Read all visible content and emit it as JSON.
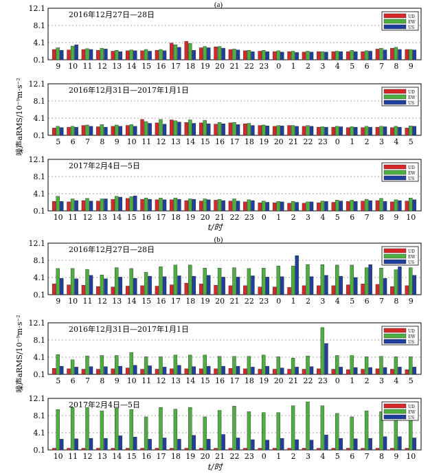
{
  "figure": {
    "panel_labels": [
      "(a)",
      "(b)"
    ],
    "ylabel": "噪声aRMS/10⁻⁹m·s⁻²",
    "xlabel": "t/时",
    "legend": [
      "UD",
      "EW",
      "US"
    ],
    "colors": {
      "UD": "#d62828",
      "EW": "#4caf3f",
      "US": "#1f3f9f"
    },
    "yticks": [
      "0.1",
      "4.1",
      "8.1",
      "12.1"
    ]
  },
  "chart_data": [
    {
      "type": "bar",
      "panel": "(a)",
      "title": "2016年12月27日—28日",
      "ylim": [
        0.1,
        12.1
      ],
      "categories": [
        "9",
        "10",
        "11",
        "12",
        "13",
        "14",
        "15",
        "16",
        "17",
        "18",
        "19",
        "20",
        "21",
        "22",
        "23",
        "0",
        "1",
        "2",
        "3",
        "4",
        "5",
        "6",
        "7",
        "8",
        "9"
      ],
      "series": [
        {
          "name": "UD",
          "values": [
            2.5,
            2.4,
            2.5,
            2.3,
            2.1,
            2.2,
            2.2,
            2.3,
            4.0,
            4.4,
            2.9,
            3.1,
            2.5,
            2.2,
            2.1,
            2.0,
            2.0,
            1.9,
            2.0,
            2.0,
            2.0,
            2.0,
            2.6,
            2.8,
            2.5
          ]
        },
        {
          "name": "EW",
          "values": [
            2.9,
            3.3,
            2.7,
            2.8,
            2.3,
            2.4,
            2.5,
            2.5,
            3.6,
            3.9,
            3.2,
            3.2,
            2.6,
            2.3,
            2.3,
            2.2,
            2.1,
            2.1,
            2.0,
            2.1,
            2.3,
            2.2,
            2.8,
            3.0,
            2.5
          ]
        },
        {
          "name": "US",
          "values": [
            2.3,
            3.6,
            2.5,
            2.6,
            2.0,
            2.2,
            2.1,
            2.2,
            3.0,
            2.3,
            2.9,
            2.8,
            2.4,
            2.0,
            2.0,
            1.9,
            1.8,
            1.9,
            1.9,
            2.0,
            2.0,
            2.1,
            2.4,
            2.5,
            2.4
          ]
        }
      ]
    },
    {
      "type": "bar",
      "panel": "(a)",
      "title": "2016年12月31日—2017年1月1日",
      "ylim": [
        0.1,
        12.1
      ],
      "categories": [
        "5",
        "6",
        "7",
        "8",
        "9",
        "10",
        "11",
        "12",
        "13",
        "14",
        "15",
        "16",
        "17",
        "18",
        "19",
        "20",
        "21",
        "22",
        "23",
        "0",
        "1",
        "2",
        "3",
        "4",
        "5"
      ],
      "series": [
        {
          "name": "UD",
          "values": [
            1.8,
            2.0,
            2.4,
            2.1,
            2.2,
            2.4,
            3.8,
            3.0,
            3.7,
            3.1,
            3.0,
            2.7,
            3.0,
            2.8,
            2.4,
            2.2,
            2.4,
            2.2,
            2.0,
            2.0,
            1.9,
            1.9,
            2.0,
            1.9,
            1.8
          ]
        },
        {
          "name": "EW",
          "values": [
            2.2,
            2.2,
            2.5,
            2.6,
            2.5,
            2.6,
            3.3,
            3.8,
            3.5,
            3.7,
            3.6,
            3.1,
            3.1,
            2.9,
            2.5,
            2.4,
            2.4,
            2.4,
            2.1,
            2.2,
            2.1,
            2.2,
            2.2,
            2.2,
            2.3
          ]
        },
        {
          "name": "US",
          "values": [
            1.9,
            2.0,
            2.2,
            2.0,
            2.2,
            2.2,
            2.9,
            2.7,
            3.2,
            2.9,
            2.8,
            2.8,
            2.6,
            2.4,
            2.3,
            2.3,
            2.2,
            2.2,
            2.0,
            2.1,
            2.0,
            2.0,
            2.1,
            2.0,
            2.2
          ]
        }
      ]
    },
    {
      "type": "bar",
      "panel": "(a)",
      "title": "2017年2月4日—5日",
      "ylim": [
        0.1,
        12.1
      ],
      "categories": [
        "10",
        "11",
        "12",
        "13",
        "14",
        "15",
        "16",
        "17",
        "18",
        "19",
        "20",
        "21",
        "22",
        "23",
        "0",
        "1",
        "2",
        "3",
        "4",
        "5",
        "6",
        "7",
        "8",
        "9",
        "10"
      ],
      "series": [
        {
          "name": "UD",
          "values": [
            2.3,
            2.2,
            2.5,
            2.4,
            2.8,
            3.0,
            2.8,
            2.7,
            2.7,
            2.5,
            2.4,
            2.6,
            2.4,
            2.2,
            2.0,
            2.0,
            1.9,
            1.9,
            2.0,
            2.1,
            2.3,
            2.4,
            2.5,
            2.2,
            2.4
          ]
        },
        {
          "name": "EW",
          "values": [
            3.5,
            2.9,
            3.0,
            2.9,
            3.5,
            3.4,
            3.1,
            3.1,
            3.1,
            2.9,
            2.9,
            2.8,
            2.9,
            2.7,
            2.4,
            2.3,
            2.3,
            2.2,
            2.4,
            2.6,
            2.6,
            2.8,
            3.0,
            2.7,
            3.1
          ]
        },
        {
          "name": "US",
          "values": [
            2.3,
            2.5,
            2.4,
            2.9,
            3.3,
            3.6,
            2.8,
            2.7,
            2.8,
            2.8,
            2.7,
            2.5,
            2.4,
            2.5,
            2.1,
            2.2,
            2.1,
            2.2,
            2.3,
            2.4,
            2.3,
            2.5,
            2.3,
            2.5,
            2.7
          ]
        }
      ]
    },
    {
      "type": "bar",
      "panel": "(b)",
      "title": "2016年12月27日—28日",
      "ylim": [
        0.1,
        12.1
      ],
      "categories": [
        "9",
        "10",
        "11",
        "12",
        "13",
        "14",
        "15",
        "16",
        "17",
        "18",
        "19",
        "20",
        "21",
        "22",
        "23",
        "0",
        "1",
        "2",
        "3",
        "4",
        "5",
        "6",
        "7",
        "8",
        "9"
      ],
      "series": [
        {
          "name": "UD",
          "values": [
            2.6,
            2.4,
            2.3,
            2.0,
            1.9,
            2.1,
            2.2,
            2.1,
            2.4,
            2.8,
            2.6,
            2.3,
            2.2,
            2.2,
            1.9,
            1.9,
            1.8,
            2.2,
            2.2,
            2.2,
            2.4,
            2.6,
            2.5,
            2.0,
            2.2
          ]
        },
        {
          "name": "EW",
          "values": [
            6.2,
            6.2,
            6.0,
            4.7,
            6.4,
            6.2,
            5.3,
            6.6,
            7.0,
            7.0,
            6.3,
            6.3,
            6.4,
            6.2,
            6.3,
            6.8,
            6.8,
            7.1,
            7.1,
            7.0,
            7.0,
            6.4,
            6.3,
            5.9,
            6.4
          ]
        },
        {
          "name": "US",
          "values": [
            3.9,
            3.8,
            4.6,
            3.8,
            4.2,
            3.9,
            4.4,
            4.3,
            4.5,
            4.4,
            4.6,
            4.2,
            4.2,
            4.5,
            4.2,
            4.3,
            9.2,
            4.3,
            4.6,
            4.4,
            4.1,
            7.1,
            3.9,
            6.6,
            4.6
          ]
        }
      ]
    },
    {
      "type": "bar",
      "panel": "(b)",
      "title": "2016年12月31日—2017年1月1日",
      "ylim": [
        0.1,
        12.1
      ],
      "categories": [
        "5",
        "6",
        "7",
        "8",
        "9",
        "10",
        "11",
        "12",
        "13",
        "14",
        "15",
        "16",
        "17",
        "18",
        "19",
        "20",
        "21",
        "22",
        "23",
        "0",
        "1",
        "2",
        "3",
        "4",
        "5"
      ],
      "series": [
        {
          "name": "UD",
          "values": [
            1.5,
            1.4,
            1.3,
            1.3,
            1.4,
            1.6,
            1.3,
            1.3,
            1.4,
            1.4,
            1.4,
            1.4,
            1.5,
            1.4,
            1.3,
            1.3,
            1.3,
            1.3,
            1.4,
            1.3,
            1.2,
            1.3,
            1.4,
            1.3,
            1.2
          ]
        },
        {
          "name": "EW",
          "values": [
            4.7,
            3.5,
            4.4,
            4.5,
            4.5,
            5.2,
            4.2,
            4.2,
            4.6,
            4.6,
            4.6,
            4.3,
            4.3,
            4.3,
            4.6,
            4.2,
            3.9,
            4.4,
            11.0,
            4.5,
            4.5,
            4.2,
            4.3,
            4.2,
            4.2
          ]
        },
        {
          "name": "US",
          "values": [
            2.0,
            1.8,
            1.9,
            1.9,
            2.0,
            2.2,
            2.1,
            1.8,
            2.2,
            1.9,
            2.0,
            2.0,
            2.0,
            1.8,
            2.0,
            1.6,
            1.8,
            1.9,
            7.3,
            1.8,
            1.7,
            1.7,
            1.7,
            1.8,
            1.8
          ]
        }
      ]
    },
    {
      "type": "bar",
      "panel": "(b)",
      "title": "2017年2月4日—5日",
      "ylim": [
        0.1,
        12.1
      ],
      "categories": [
        "10",
        "11",
        "12",
        "13",
        "14",
        "15",
        "16",
        "17",
        "18",
        "19",
        "20",
        "21",
        "22",
        "23",
        "0",
        "1",
        "2",
        "3",
        "4",
        "5",
        "6",
        "7",
        "8",
        "9",
        "10"
      ],
      "series": [
        {
          "name": "UD",
          "values": [
            0.5,
            0.5,
            0.5,
            0.5,
            0.5,
            0.5,
            0.5,
            0.5,
            0.5,
            0.5,
            0.5,
            0.5,
            0.5,
            0.5,
            0.5,
            0.5,
            0.5,
            0.5,
            0.5,
            0.5,
            0.5,
            0.5,
            0.5,
            0.5,
            0.5
          ]
        },
        {
          "name": "EW",
          "values": [
            9.5,
            10.0,
            10.0,
            9.2,
            9.8,
            9.5,
            7.8,
            10.0,
            9.6,
            10.0,
            7.8,
            9.3,
            10.3,
            9.0,
            8.8,
            8.8,
            10.4,
            11.3,
            10.4,
            8.6,
            7.8,
            9.2,
            9.0,
            9.1,
            10.0
          ]
        },
        {
          "name": "US",
          "values": [
            2.6,
            2.7,
            2.8,
            2.8,
            3.4,
            3.1,
            2.6,
            2.9,
            2.6,
            3.5,
            2.6,
            3.7,
            2.9,
            2.5,
            2.4,
            2.8,
            2.5,
            2.4,
            3.6,
            2.8,
            2.7,
            2.8,
            3.2,
            3.2,
            2.9
          ]
        }
      ]
    }
  ]
}
